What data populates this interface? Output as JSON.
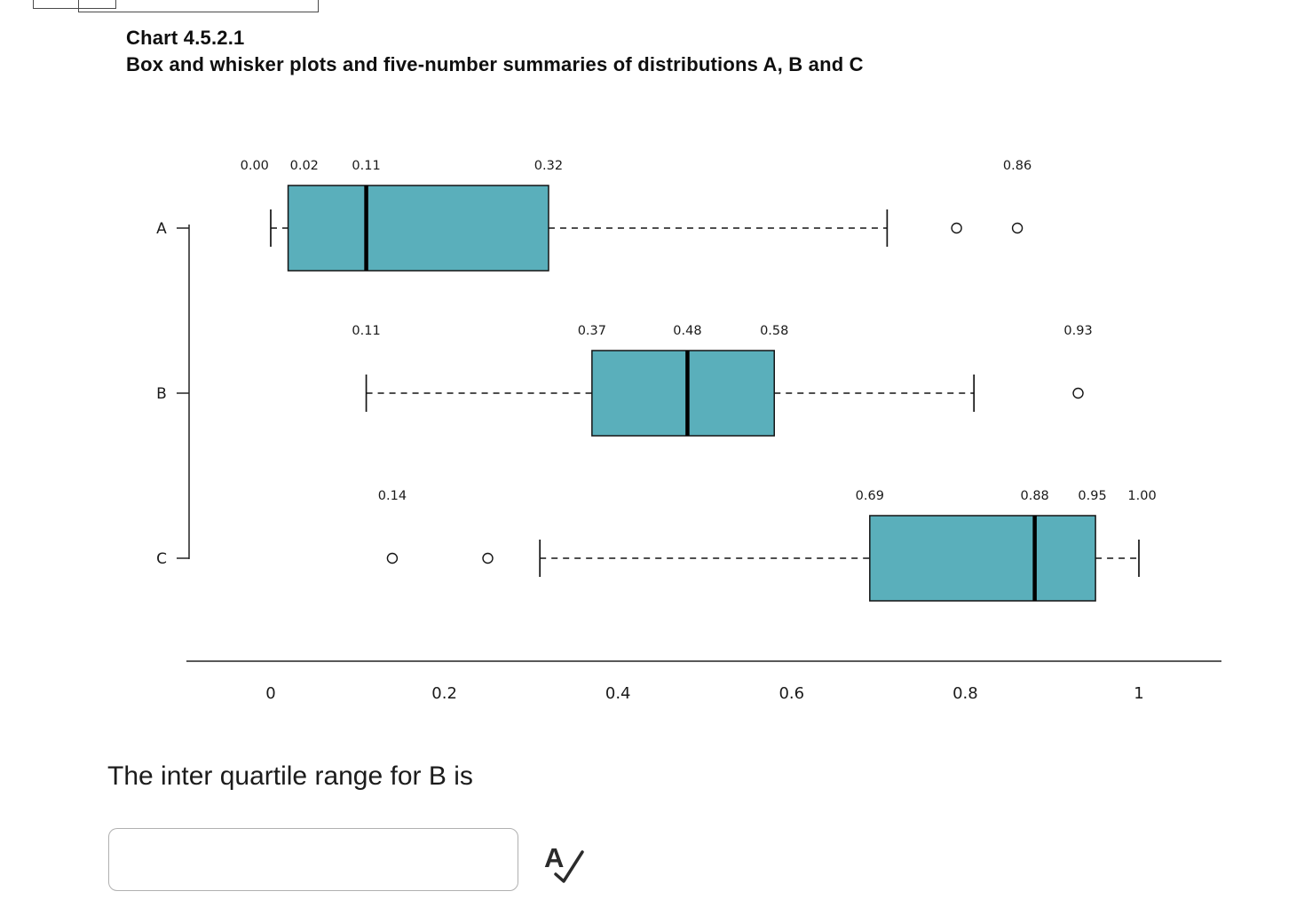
{
  "page": {
    "title": "Chart 4.5.2.1",
    "subtitle": "Box and whisker plots and five-number summaries of distributions A, B and C",
    "question": "The inter quartile range for B is",
    "answer_input": {
      "value": "",
      "placeholder": ""
    }
  },
  "icons": {
    "check_answer_letter": "A"
  },
  "chart_data": {
    "type": "boxplot",
    "orientation": "horizontal",
    "title": "Chart 4.5.2.1",
    "subtitle": "Box and whisker plots and five-number summaries of distributions A, B and C",
    "categories": [
      "A",
      "B",
      "C"
    ],
    "xlim": [
      0,
      1
    ],
    "x_tick_values": [
      0,
      0.2,
      0.4,
      0.6,
      0.8,
      1
    ],
    "x_tick_labels": [
      "0",
      "0.2",
      "0.4",
      "0.6",
      "0.8",
      "1"
    ],
    "grid": false,
    "legend": "none",
    "box_fill": "#5aafbb",
    "box_stroke": "#141414",
    "series": [
      {
        "name": "A",
        "five_number_summary": {
          "min": 0.0,
          "q1": 0.02,
          "median": 0.11,
          "q3": 0.32,
          "max": 0.86
        },
        "whisker_low": 0.0,
        "q1": 0.02,
        "median": 0.11,
        "q3": 0.32,
        "whisker_high": 0.71,
        "outliers": [
          0.79,
          0.86
        ],
        "label_values": [
          0.0,
          0.02,
          0.11,
          0.32,
          0.86
        ],
        "value_labels": [
          "0.00",
          "0.02",
          "0.11",
          "0.32",
          "0.86"
        ]
      },
      {
        "name": "B",
        "five_number_summary": {
          "min": 0.11,
          "q1": 0.37,
          "median": 0.48,
          "q3": 0.58,
          "max": 0.93
        },
        "whisker_low": 0.11,
        "q1": 0.37,
        "median": 0.48,
        "q3": 0.58,
        "whisker_high": 0.81,
        "outliers": [
          0.93
        ],
        "label_values": [
          0.11,
          0.37,
          0.48,
          0.58,
          0.93
        ],
        "value_labels": [
          "0.11",
          "0.37",
          "0.48",
          "0.58",
          "0.93"
        ]
      },
      {
        "name": "C",
        "five_number_summary": {
          "min": 0.14,
          "q1": 0.69,
          "median": 0.88,
          "q3": 0.95,
          "max": 1.0
        },
        "whisker_low": 0.31,
        "q1": 0.69,
        "median": 0.88,
        "q3": 0.95,
        "whisker_high": 1.0,
        "outliers": [
          0.14,
          0.25
        ],
        "label_values": [
          0.14,
          0.69,
          0.88,
          0.95,
          1.0
        ],
        "value_labels": [
          "0.14",
          "0.69",
          "0.88",
          "0.95",
          "1.00"
        ]
      }
    ]
  }
}
